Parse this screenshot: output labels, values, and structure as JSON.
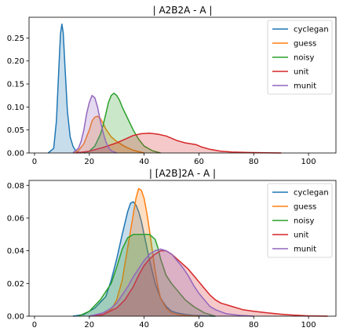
{
  "chart_data": [
    {
      "type": "area",
      "title": "| A2B2A - A |",
      "xlabel": "",
      "ylabel": "",
      "xlim": [
        -2,
        110
      ],
      "ylim": [
        0,
        0.295
      ],
      "xticks": [
        0,
        20,
        40,
        60,
        80,
        100
      ],
      "yticks": [
        0.0,
        0.05,
        0.1,
        0.15,
        0.2,
        0.25
      ],
      "ytick_labels": [
        "0.00",
        "0.05",
        "0.10",
        "0.15",
        "0.20",
        "0.25"
      ],
      "legend_position": "top-right",
      "series": [
        {
          "name": "cyclegan",
          "color": "#1f77b4",
          "x": [
            5,
            7,
            8,
            9,
            9.5,
            10,
            10.5,
            11,
            12,
            13,
            14,
            15,
            16,
            17
          ],
          "y": [
            0,
            0.01,
            0.07,
            0.2,
            0.26,
            0.28,
            0.26,
            0.2,
            0.09,
            0.035,
            0.015,
            0.005,
            0.002,
            0
          ]
        },
        {
          "name": "guess",
          "color": "#ff7f0e",
          "x": [
            14,
            16,
            18,
            20,
            21,
            22,
            23,
            24,
            25,
            26,
            28,
            30,
            33,
            36,
            40
          ],
          "y": [
            0,
            0.005,
            0.02,
            0.05,
            0.07,
            0.078,
            0.08,
            0.075,
            0.065,
            0.052,
            0.035,
            0.025,
            0.014,
            0.006,
            0
          ]
        },
        {
          "name": "noisy",
          "color": "#2ca02c",
          "x": [
            18,
            20,
            22,
            24,
            25,
            26,
            27,
            28,
            29,
            30,
            31,
            32,
            34,
            36,
            38,
            40,
            43,
            46
          ],
          "y": [
            0,
            0.004,
            0.015,
            0.04,
            0.06,
            0.085,
            0.11,
            0.125,
            0.13,
            0.125,
            0.115,
            0.1,
            0.075,
            0.05,
            0.03,
            0.015,
            0.005,
            0
          ]
        },
        {
          "name": "unit",
          "color": "#d62728",
          "x": [
            15,
            20,
            25,
            30,
            33,
            36,
            39,
            42,
            45,
            48,
            50,
            52,
            55,
            57,
            59,
            61,
            64,
            68,
            72,
            78,
            85,
            90
          ],
          "y": [
            0,
            0.004,
            0.012,
            0.022,
            0.03,
            0.038,
            0.042,
            0.043,
            0.041,
            0.037,
            0.032,
            0.027,
            0.022,
            0.02,
            0.018,
            0.013,
            0.008,
            0.004,
            0.002,
            0.001,
            0.0003,
            0
          ]
        },
        {
          "name": "munit",
          "color": "#9467bd",
          "x": [
            14,
            16,
            17,
            18,
            19,
            20,
            21,
            22,
            23,
            24,
            25,
            26,
            27,
            28,
            30
          ],
          "y": [
            0,
            0.01,
            0.025,
            0.05,
            0.085,
            0.11,
            0.125,
            0.12,
            0.1,
            0.07,
            0.045,
            0.025,
            0.012,
            0.005,
            0
          ]
        }
      ]
    },
    {
      "type": "area",
      "title": "| [A2B]2A - A |",
      "xlabel": "",
      "ylabel": "",
      "xlim": [
        -2,
        110
      ],
      "ylim": [
        0,
        0.083
      ],
      "xticks": [
        0,
        20,
        40,
        60,
        80,
        100
      ],
      "yticks": [
        0.0,
        0.02,
        0.04,
        0.06,
        0.08
      ],
      "ytick_labels": [
        "0.00",
        "0.02",
        "0.04",
        "0.06",
        "0.08"
      ],
      "legend_position": "top-right",
      "series": [
        {
          "name": "cyclegan",
          "color": "#1f77b4",
          "x": [
            14,
            18,
            22,
            26,
            28,
            30,
            32,
            34,
            35,
            36,
            37,
            38,
            39,
            40,
            41,
            42,
            44,
            46,
            48,
            50,
            52,
            55,
            58,
            62,
            66
          ],
          "y": [
            0,
            0.001,
            0.005,
            0.012,
            0.022,
            0.035,
            0.05,
            0.064,
            0.069,
            0.07,
            0.068,
            0.064,
            0.058,
            0.05,
            0.042,
            0.034,
            0.02,
            0.011,
            0.006,
            0.003,
            0.002,
            0.001,
            0.0005,
            0.0002,
            0
          ]
        },
        {
          "name": "guess",
          "color": "#ff7f0e",
          "x": [
            24,
            28,
            30,
            32,
            34,
            36,
            37,
            38,
            39,
            40,
            41,
            42,
            43,
            44,
            45,
            46,
            48,
            50,
            53,
            56,
            60
          ],
          "y": [
            0,
            0.004,
            0.01,
            0.022,
            0.042,
            0.062,
            0.072,
            0.078,
            0.077,
            0.072,
            0.063,
            0.052,
            0.04,
            0.028,
            0.018,
            0.011,
            0.005,
            0.002,
            0.0008,
            0.0003,
            0
          ]
        },
        {
          "name": "noisy",
          "color": "#2ca02c",
          "x": [
            16,
            20,
            24,
            28,
            30,
            32,
            34,
            36,
            38,
            40,
            42,
            44,
            45,
            46,
            48,
            50,
            52,
            55,
            58,
            62,
            66
          ],
          "y": [
            0,
            0.003,
            0.01,
            0.02,
            0.03,
            0.041,
            0.048,
            0.05,
            0.05,
            0.05,
            0.05,
            0.047,
            0.042,
            0.035,
            0.025,
            0.02,
            0.016,
            0.01,
            0.006,
            0.002,
            0
          ]
        },
        {
          "name": "unit",
          "color": "#d62728",
          "x": [
            20,
            25,
            30,
            33,
            36,
            38,
            40,
            42,
            44,
            46,
            48,
            50,
            52,
            54,
            56,
            58,
            60,
            62,
            64,
            66,
            68,
            72,
            76,
            80,
            85,
            90,
            95,
            100,
            107
          ],
          "y": [
            0,
            0.001,
            0.005,
            0.01,
            0.018,
            0.025,
            0.031,
            0.035,
            0.038,
            0.04,
            0.04,
            0.038,
            0.035,
            0.032,
            0.029,
            0.025,
            0.021,
            0.017,
            0.013,
            0.01,
            0.008,
            0.006,
            0.004,
            0.003,
            0.002,
            0.0012,
            0.0006,
            0.0002,
            0
          ]
        },
        {
          "name": "munit",
          "color": "#9467bd",
          "x": [
            20,
            25,
            28,
            30,
            32,
            34,
            36,
            38,
            40,
            42,
            44,
            46,
            48,
            50,
            52,
            54,
            56,
            58,
            60,
            62,
            64,
            66,
            70,
            75,
            80
          ],
          "y": [
            0,
            0.002,
            0.005,
            0.008,
            0.013,
            0.018,
            0.024,
            0.029,
            0.034,
            0.038,
            0.04,
            0.041,
            0.04,
            0.038,
            0.034,
            0.03,
            0.025,
            0.019,
            0.014,
            0.01,
            0.006,
            0.004,
            0.0015,
            0.0005,
            0
          ]
        }
      ]
    }
  ]
}
